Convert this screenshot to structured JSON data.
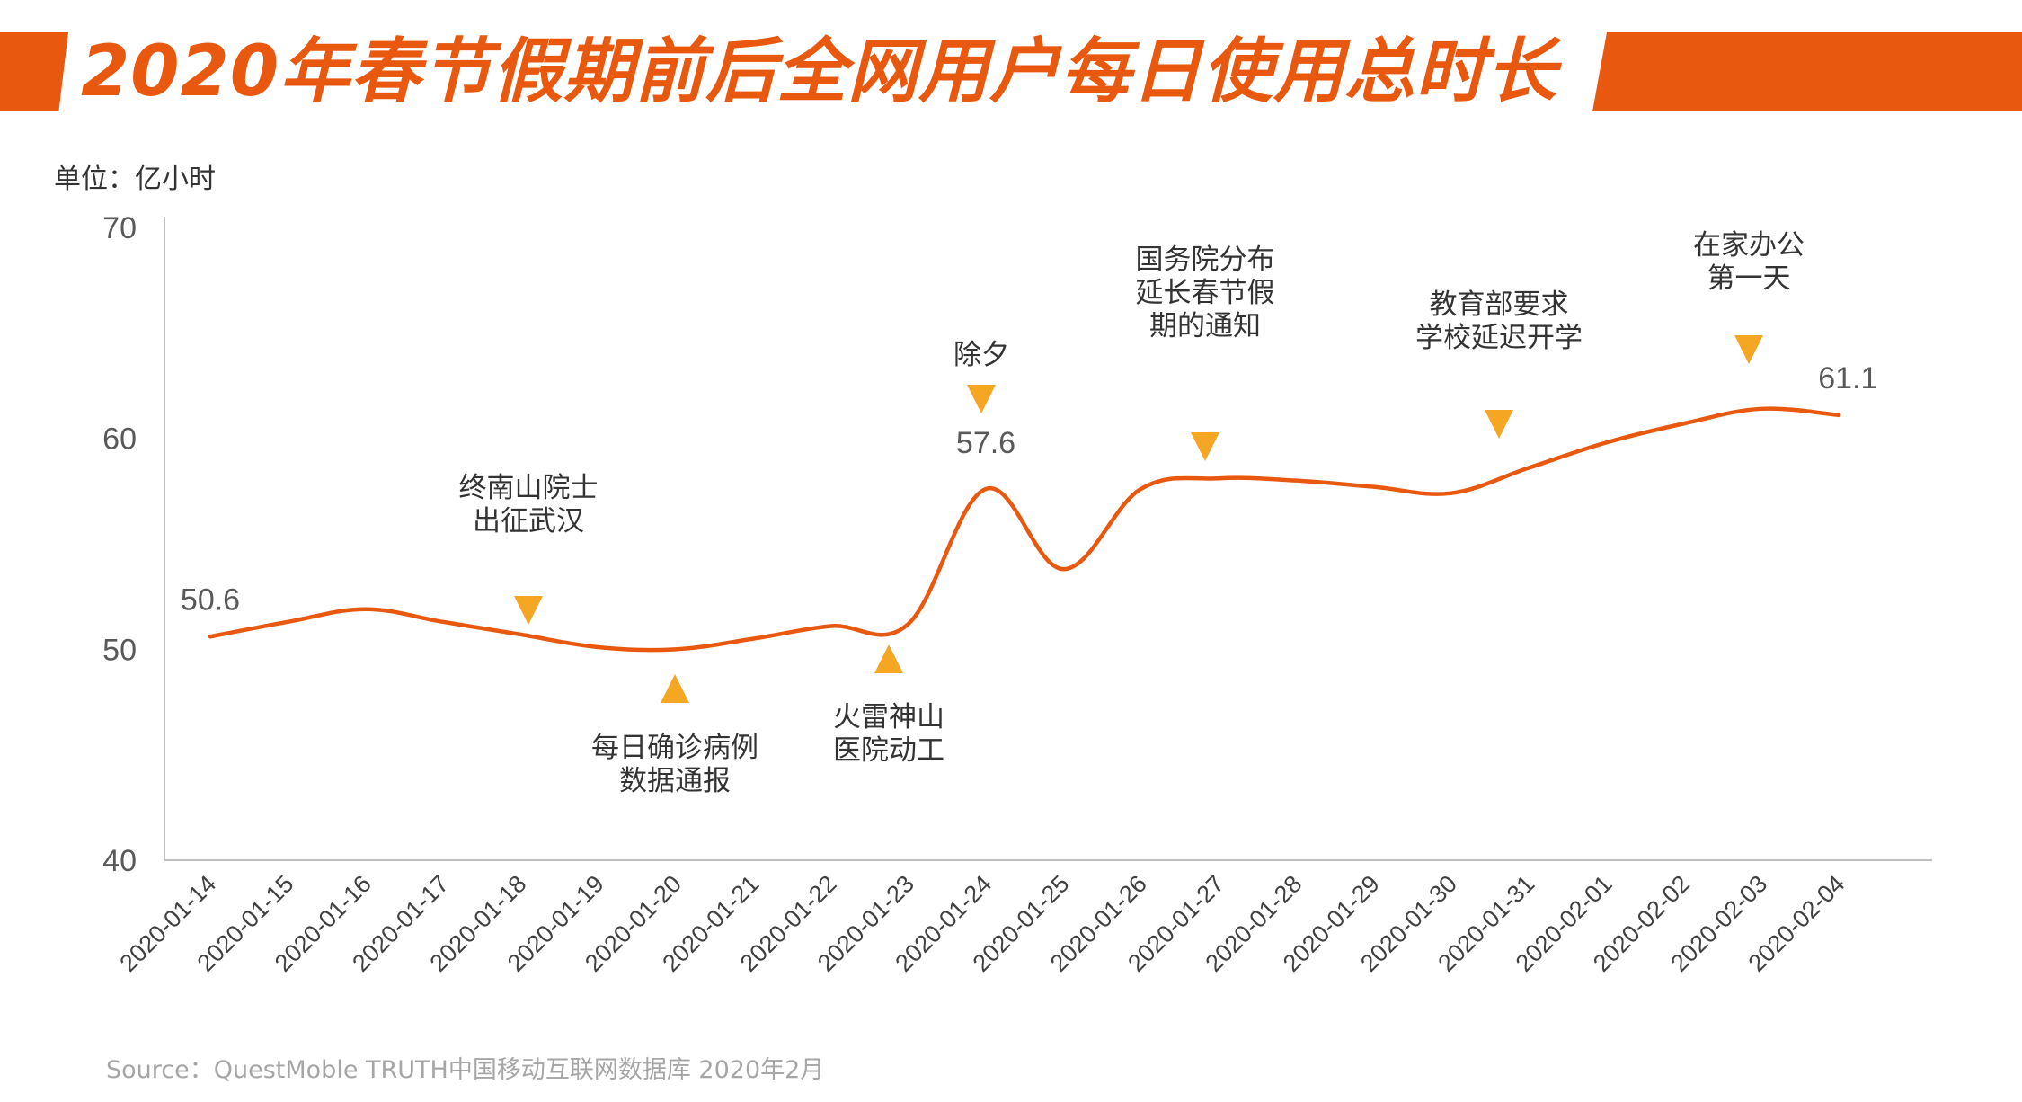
{
  "title": "2020年春节假期前后全网用户每日使用总时长",
  "unit_label": "单位：亿小时",
  "source": "Source：QuestMoble TRUTH中国移动互联网数据库 2020年2月",
  "colors": {
    "accent": "#e8580f",
    "marker": "#f5a623",
    "axis": "#bfbfbf",
    "text": "#333333",
    "muted": "#a6a6a6"
  },
  "chart_data": {
    "type": "line",
    "categories": [
      "2020-01-14",
      "2020-01-15",
      "2020-01-16",
      "2020-01-17",
      "2020-01-18",
      "2020-01-19",
      "2020-01-20",
      "2020-01-21",
      "2020-01-22",
      "2020-01-23",
      "2020-01-24",
      "2020-01-25",
      "2020-01-26",
      "2020-01-27",
      "2020-01-28",
      "2020-01-29",
      "2020-01-30",
      "2020-01-31",
      "2020-02-01",
      "2020-02-02",
      "2020-02-03",
      "2020-02-04"
    ],
    "series": [
      {
        "values": [
          50.6,
          51.3,
          51.9,
          51.3,
          50.7,
          50.1,
          50.0,
          50.5,
          51.1,
          51.2,
          57.6,
          53.8,
          57.6,
          58.1,
          58.0,
          57.7,
          57.4,
          58.6,
          59.8,
          60.7,
          61.4,
          61.1
        ]
      }
    ],
    "ylim": [
      40,
      70
    ],
    "yticks": [
      40,
      50,
      60,
      70
    ],
    "grid": false,
    "data_labels": [
      {
        "index": 0,
        "text": "50.6"
      },
      {
        "index": 10,
        "text": "57.6"
      },
      {
        "index": 21,
        "text": "61.1"
      }
    ],
    "annotations": [
      {
        "index": 4,
        "lines": [
          "终南山院士",
          "出征武汉"
        ],
        "marker": "down"
      },
      {
        "index": 6,
        "lines": [
          "每日确诊病例",
          "数据通报"
        ],
        "marker": "up"
      },
      {
        "index": 9,
        "lines": [
          "火雷神山",
          "医院动工"
        ],
        "marker": "up"
      },
      {
        "index": 10,
        "lines": [
          "除夕"
        ],
        "marker": "down"
      },
      {
        "index": 13,
        "lines": [
          "国务院分布",
          "延长春节假",
          "期的通知"
        ],
        "marker": "down"
      },
      {
        "index": 17,
        "lines": [
          "教育部要求",
          "学校延迟开学"
        ],
        "marker": "down"
      },
      {
        "index": 20,
        "lines": [
          "在家办公",
          "第一天"
        ],
        "marker": "down"
      }
    ]
  }
}
